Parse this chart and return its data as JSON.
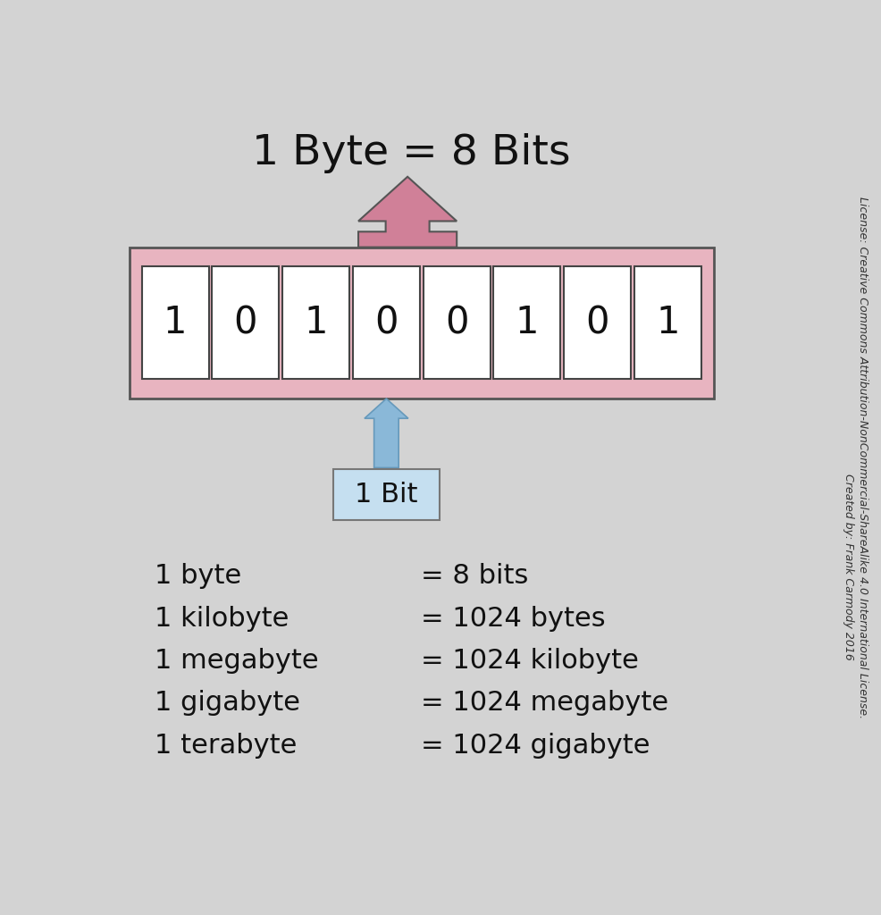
{
  "bg_color": "#d3d3d3",
  "title": "1 Byte = 8 Bits",
  "title_fontsize": 34,
  "bits": [
    "1",
    "0",
    "1",
    "0",
    "0",
    "1",
    "0",
    "1"
  ],
  "bit_box_color": "#ffffff",
  "bit_box_edge_color": "#444444",
  "byte_box_color": "#e8b4c0",
  "byte_box_edge_color": "#555555",
  "bit_label": "1 Bit",
  "bit_label_box_color": "#c5dff0",
  "bit_label_box_edge_color": "#777777",
  "bit_arrow_color": "#8ab8d8",
  "byte_arrow_color": "#d08098",
  "data_lines": [
    [
      "1 byte",
      "= 8 bits"
    ],
    [
      "1 kilobyte",
      "= 1024 bytes"
    ],
    [
      "1 megabyte",
      "= 1024 kilobyte"
    ],
    [
      "1 gigabyte",
      "= 1024 megabyte"
    ],
    [
      "1 terabyte",
      "= 1024 gigabyte"
    ]
  ],
  "data_fontsize": 22,
  "bits_fontsize": 30,
  "credit_line1": "Created by: Frank Carmody 2016",
  "credit_line2": "License: Creative Commons Attribution-NonCommercial-ShareAlike 4.0 International License.",
  "credit_fontsize": 9
}
